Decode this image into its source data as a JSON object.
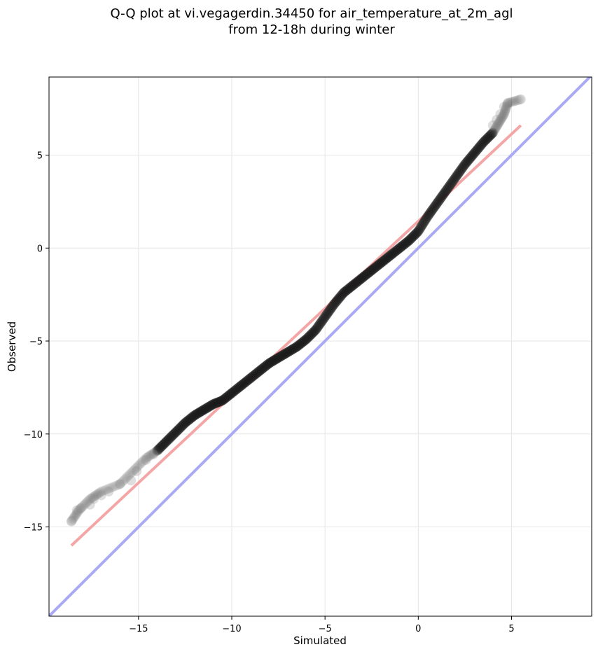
{
  "chart_data": {
    "type": "scatter",
    "title": "Q-Q plot at vi.vegagerdin.34450 for air_temperature_at_2m_agl",
    "subtitle": "from 12-18h during winter",
    "xlabel": "Simulated",
    "ylabel": "Observed",
    "xlim": [
      -19.8,
      9.3
    ],
    "ylim": [
      -19.8,
      9.2
    ],
    "x_ticks": [
      -15,
      -10,
      -5,
      0,
      5
    ],
    "y_ticks": [
      -15,
      -10,
      -5,
      0,
      5
    ],
    "x_tick_labels": [
      "−15",
      "−10",
      "−5",
      "0",
      "5"
    ],
    "y_tick_labels": [
      "−15",
      "−10",
      "−5",
      "0",
      "5"
    ],
    "grid": true,
    "quantile_curve": {
      "x": [
        -18.6,
        -18.2,
        -17.6,
        -17.0,
        -16.0,
        -15.3,
        -14.6,
        -14.0,
        -13.5,
        -13.0,
        -12.5,
        -12.0,
        -11.5,
        -11.0,
        -10.5,
        -10.0,
        -9.5,
        -9.0,
        -8.5,
        -8.0,
        -7.5,
        -7.0,
        -6.5,
        -6.0,
        -5.5,
        -5.0,
        -4.5,
        -4.0,
        -3.5,
        -3.0,
        -2.5,
        -2.0,
        -1.5,
        -1.0,
        -0.5,
        0.0,
        0.5,
        1.0,
        1.5,
        2.0,
        2.5,
        3.0,
        3.5,
        4.0,
        4.3,
        4.6,
        4.8,
        5.5
      ],
      "y": [
        -14.7,
        -14.1,
        -13.5,
        -13.1,
        -12.7,
        -12.0,
        -11.3,
        -10.9,
        -10.4,
        -9.9,
        -9.4,
        -9.0,
        -8.7,
        -8.4,
        -8.2,
        -7.8,
        -7.4,
        -7.0,
        -6.6,
        -6.2,
        -5.9,
        -5.6,
        -5.3,
        -4.9,
        -4.4,
        -3.7,
        -3.0,
        -2.4,
        -2.0,
        -1.6,
        -1.2,
        -0.8,
        -0.4,
        0.0,
        0.4,
        0.9,
        1.7,
        2.4,
        3.1,
        3.8,
        4.5,
        5.1,
        5.7,
        6.2,
        6.7,
        7.2,
        7.8,
        8.0
      ]
    },
    "tail_points": {
      "x": [
        -18.6,
        -18.3,
        -18.1,
        -17.6,
        -17.4,
        -17.0,
        -16.6,
        -16.0,
        -15.4,
        -15.1,
        -14.6,
        -14.2,
        4.0,
        4.2,
        4.4,
        4.6,
        4.8,
        5.5
      ],
      "y": [
        -14.7,
        -14.1,
        -14.0,
        -13.8,
        -13.5,
        -13.3,
        -13.1,
        -12.7,
        -12.5,
        -12.0,
        -11.4,
        -11.1,
        6.6,
        6.9,
        7.2,
        7.6,
        7.8,
        8.0
      ]
    },
    "fit_line": {
      "x": [
        -18.6,
        5.5
      ],
      "y": [
        -16.0,
        6.6
      ],
      "color": "#f4a6a6"
    },
    "identity_line": {
      "x": [
        -19.8,
        9.3
      ],
      "y": [
        -19.8,
        9.3
      ],
      "color": "#aaaaf4"
    },
    "point_color": "#1a1a1a"
  }
}
